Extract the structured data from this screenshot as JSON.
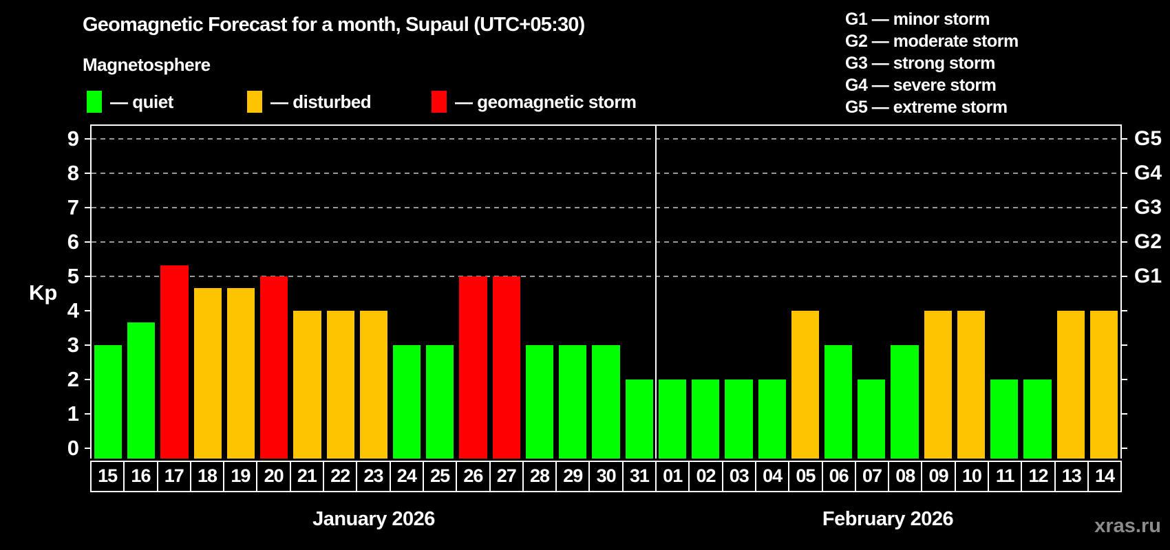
{
  "header": {
    "title": "Geomagnetic Forecast for a month, Supaul (UTC+05:30)",
    "subtitle": "Magnetosphere"
  },
  "legend": {
    "items": [
      {
        "key": "quiet",
        "label": "— quiet"
      },
      {
        "key": "disturbed",
        "label": "— disturbed"
      },
      {
        "key": "storm",
        "label": "— geomagnetic storm"
      }
    ]
  },
  "g_legend": [
    "G1 — minor storm",
    "G2 — moderate storm",
    "G3 — strong storm",
    "G4 — severe storm",
    "G5 — extreme storm"
  ],
  "watermark": "xras.ru",
  "colors": {
    "quiet": "#00ff00",
    "disturbed": "#ffc400",
    "storm": "#ff0000",
    "grid": "#9a9a9a",
    "axis": "#ffffff",
    "background": "#000000",
    "watermark": "#8c8c8c"
  },
  "chart_data": {
    "type": "bar",
    "ylabel": "Kp",
    "ylim": [
      0,
      9.4
    ],
    "yticks": [
      0,
      1,
      2,
      3,
      4,
      5,
      6,
      7,
      8,
      9
    ],
    "gridlines_at": [
      5,
      6,
      7,
      8,
      9
    ],
    "right_axis_labels": [
      {
        "label": "G1",
        "kp": 5
      },
      {
        "label": "G2",
        "kp": 6
      },
      {
        "label": "G3",
        "kp": 7
      },
      {
        "label": "G4",
        "kp": 8
      },
      {
        "label": "G5",
        "kp": 9
      }
    ],
    "months": [
      {
        "label": "January 2026",
        "days": 17
      },
      {
        "label": "February 2026",
        "days": 14
      }
    ],
    "bars": [
      {
        "day": "15",
        "kp": 3.0,
        "state": "quiet"
      },
      {
        "day": "16",
        "kp": 3.67,
        "state": "quiet"
      },
      {
        "day": "17",
        "kp": 5.33,
        "state": "storm"
      },
      {
        "day": "18",
        "kp": 4.67,
        "state": "disturbed"
      },
      {
        "day": "19",
        "kp": 4.67,
        "state": "disturbed"
      },
      {
        "day": "20",
        "kp": 5.0,
        "state": "storm"
      },
      {
        "day": "21",
        "kp": 4.0,
        "state": "disturbed"
      },
      {
        "day": "22",
        "kp": 4.0,
        "state": "disturbed"
      },
      {
        "day": "23",
        "kp": 4.0,
        "state": "disturbed"
      },
      {
        "day": "24",
        "kp": 3.0,
        "state": "quiet"
      },
      {
        "day": "25",
        "kp": 3.0,
        "state": "quiet"
      },
      {
        "day": "26",
        "kp": 5.0,
        "state": "storm"
      },
      {
        "day": "27",
        "kp": 5.0,
        "state": "storm"
      },
      {
        "day": "28",
        "kp": 3.0,
        "state": "quiet"
      },
      {
        "day": "29",
        "kp": 3.0,
        "state": "quiet"
      },
      {
        "day": "30",
        "kp": 3.0,
        "state": "quiet"
      },
      {
        "day": "31",
        "kp": 2.0,
        "state": "quiet"
      },
      {
        "day": "01",
        "kp": 2.0,
        "state": "quiet"
      },
      {
        "day": "02",
        "kp": 2.0,
        "state": "quiet"
      },
      {
        "day": "03",
        "kp": 2.0,
        "state": "quiet"
      },
      {
        "day": "04",
        "kp": 2.0,
        "state": "quiet"
      },
      {
        "day": "05",
        "kp": 4.0,
        "state": "disturbed"
      },
      {
        "day": "06",
        "kp": 3.0,
        "state": "quiet"
      },
      {
        "day": "07",
        "kp": 2.0,
        "state": "quiet"
      },
      {
        "day": "08",
        "kp": 3.0,
        "state": "quiet"
      },
      {
        "day": "09",
        "kp": 4.0,
        "state": "disturbed"
      },
      {
        "day": "10",
        "kp": 4.0,
        "state": "disturbed"
      },
      {
        "day": "11",
        "kp": 2.0,
        "state": "quiet"
      },
      {
        "day": "12",
        "kp": 2.0,
        "state": "quiet"
      },
      {
        "day": "13",
        "kp": 4.0,
        "state": "disturbed"
      },
      {
        "day": "14",
        "kp": 4.0,
        "state": "disturbed"
      }
    ]
  }
}
